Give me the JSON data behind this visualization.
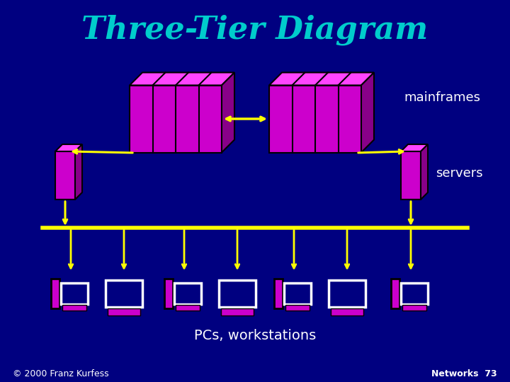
{
  "title": "Three-Tier Diagram",
  "title_color": "#00CCCC",
  "title_fontsize": 32,
  "bg_color": "#000080",
  "label_mainframes": "mainframes",
  "label_servers": "servers",
  "label_pcs": "PCs, workstations",
  "label_copyright": "© 2000 Franz Kurfess",
  "label_networks": "Networks  73",
  "label_color": "#FFFFFF",
  "magenta": "#CC00CC",
  "magenta_dark": "#880088",
  "magenta_light": "#FF44FF",
  "yellow": "#FFFF00",
  "white": "#FFFFFF",
  "blue_mid": "#0000CC"
}
